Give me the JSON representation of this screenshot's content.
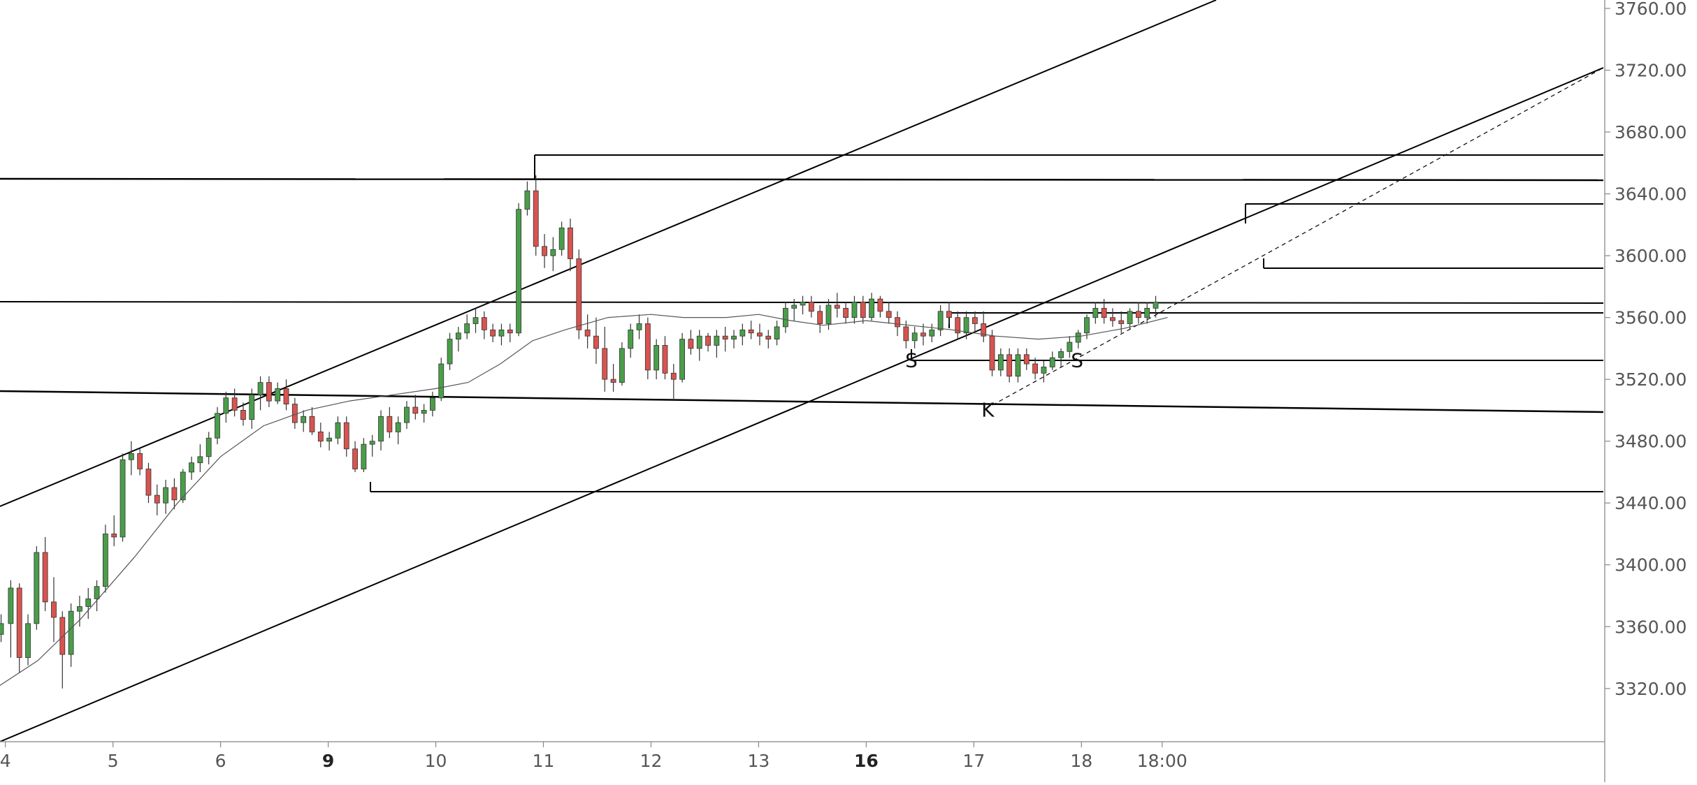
{
  "chart_data": {
    "type": "candlestick",
    "colors": {
      "up": "#4a9e4a",
      "down": "#d9534f",
      "wick": "#333333",
      "line": "#000000",
      "ma": "#555555",
      "axis_text": "#555555",
      "grid": "#cccccc"
    },
    "y_axis": {
      "position": "right",
      "range": [
        3305,
        3760
      ],
      "ticks": [
        3320,
        3360,
        3400,
        3440,
        3480,
        3520,
        3560,
        3600,
        3640,
        3680,
        3720,
        3760
      ],
      "tick_labels": [
        "3320.00",
        "3360.00",
        "3400.00",
        "3440.00",
        "3480.00",
        "3520.00",
        "3560.00",
        "3600.00",
        "3640.00",
        "3680.00",
        "3720.00",
        "3760.00"
      ]
    },
    "x_axis": {
      "range": [
        3.95,
        18.85
      ],
      "ticks": [
        {
          "value": 4,
          "label": "4",
          "bold": false
        },
        {
          "value": 5,
          "label": "5",
          "bold": false
        },
        {
          "value": 6,
          "label": "6",
          "bold": false
        },
        {
          "value": 7,
          "label": "9",
          "bold": true
        },
        {
          "value": 8,
          "label": "10",
          "bold": false
        },
        {
          "value": 9,
          "label": "11",
          "bold": false
        },
        {
          "value": 10,
          "label": "12",
          "bold": false
        },
        {
          "value": 11,
          "label": "13",
          "bold": false
        },
        {
          "value": 12,
          "label": "16",
          "bold": true
        },
        {
          "value": 13,
          "label": "17",
          "bold": false
        },
        {
          "value": 14,
          "label": "18",
          "bold": false
        },
        {
          "value": 14.75,
          "label": "18:00",
          "bold": false
        }
      ]
    },
    "candles": [
      [
        3.96,
        3355,
        3368,
        3350,
        3362
      ],
      [
        4.05,
        3362,
        3390,
        3340,
        3385
      ],
      [
        4.13,
        3385,
        3388,
        3330,
        3340
      ],
      [
        4.21,
        3340,
        3368,
        3335,
        3362
      ],
      [
        4.29,
        3362,
        3412,
        3358,
        3408
      ],
      [
        4.37,
        3408,
        3418,
        3370,
        3376
      ],
      [
        4.45,
        3376,
        3392,
        3350,
        3366
      ],
      [
        4.53,
        3366,
        3370,
        3320,
        3342
      ],
      [
        4.61,
        3342,
        3375,
        3334,
        3370
      ],
      [
        4.69,
        3370,
        3380,
        3360,
        3373
      ],
      [
        4.77,
        3373,
        3385,
        3365,
        3378
      ],
      [
        4.85,
        3378,
        3390,
        3370,
        3386
      ],
      [
        4.93,
        3386,
        3426,
        3382,
        3420
      ],
      [
        5.01,
        3420,
        3432,
        3412,
        3418
      ],
      [
        5.09,
        3418,
        3472,
        3415,
        3468
      ],
      [
        5.17,
        3468,
        3480,
        3458,
        3472
      ],
      [
        5.25,
        3472,
        3475,
        3458,
        3462
      ],
      [
        5.33,
        3462,
        3466,
        3440,
        3445
      ],
      [
        5.41,
        3445,
        3452,
        3432,
        3440
      ],
      [
        5.49,
        3440,
        3455,
        3433,
        3450
      ],
      [
        5.57,
        3450,
        3456,
        3436,
        3442
      ],
      [
        5.65,
        3442,
        3462,
        3440,
        3460
      ],
      [
        5.73,
        3460,
        3470,
        3455,
        3466
      ],
      [
        5.81,
        3466,
        3478,
        3460,
        3470
      ],
      [
        5.89,
        3470,
        3486,
        3465,
        3482
      ],
      [
        5.97,
        3482,
        3502,
        3478,
        3498
      ],
      [
        6.05,
        3498,
        3512,
        3492,
        3508
      ],
      [
        6.13,
        3508,
        3514,
        3496,
        3500
      ],
      [
        6.21,
        3500,
        3505,
        3490,
        3494
      ],
      [
        6.29,
        3494,
        3514,
        3488,
        3510
      ],
      [
        6.37,
        3510,
        3522,
        3500,
        3518
      ],
      [
        6.45,
        3518,
        3522,
        3502,
        3506
      ],
      [
        6.53,
        3506,
        3518,
        3504,
        3514
      ],
      [
        6.61,
        3514,
        3520,
        3500,
        3504
      ],
      [
        6.69,
        3504,
        3508,
        3488,
        3492
      ],
      [
        6.77,
        3492,
        3500,
        3486,
        3496
      ],
      [
        6.85,
        3496,
        3502,
        3484,
        3486
      ],
      [
        6.93,
        3486,
        3492,
        3476,
        3480
      ],
      [
        7.01,
        3480,
        3486,
        3474,
        3482
      ],
      [
        7.09,
        3482,
        3496,
        3478,
        3492
      ],
      [
        7.17,
        3492,
        3496,
        3470,
        3475
      ],
      [
        7.25,
        3475,
        3480,
        3460,
        3462
      ],
      [
        7.33,
        3462,
        3482,
        3460,
        3478
      ],
      [
        7.41,
        3478,
        3484,
        3470,
        3480
      ],
      [
        7.49,
        3480,
        3500,
        3474,
        3496
      ],
      [
        7.57,
        3496,
        3502,
        3482,
        3486
      ],
      [
        7.65,
        3486,
        3496,
        3478,
        3492
      ],
      [
        7.73,
        3492,
        3506,
        3488,
        3502
      ],
      [
        7.81,
        3502,
        3510,
        3494,
        3498
      ],
      [
        7.89,
        3498,
        3504,
        3492,
        3500
      ],
      [
        7.97,
        3500,
        3512,
        3496,
        3508
      ],
      [
        8.05,
        3508,
        3534,
        3506,
        3530
      ],
      [
        8.13,
        3530,
        3550,
        3526,
        3546
      ],
      [
        8.21,
        3546,
        3554,
        3538,
        3550
      ],
      [
        8.29,
        3550,
        3562,
        3546,
        3556
      ],
      [
        8.37,
        3556,
        3566,
        3550,
        3560
      ],
      [
        8.45,
        3560,
        3564,
        3546,
        3552
      ],
      [
        8.53,
        3552,
        3556,
        3544,
        3548
      ],
      [
        8.61,
        3548,
        3556,
        3542,
        3552
      ],
      [
        8.69,
        3552,
        3556,
        3544,
        3550
      ],
      [
        8.77,
        3550,
        3634,
        3548,
        3630
      ],
      [
        8.85,
        3630,
        3648,
        3626,
        3642
      ],
      [
        8.93,
        3642,
        3652,
        3600,
        3606
      ],
      [
        9.01,
        3606,
        3614,
        3592,
        3600
      ],
      [
        9.09,
        3600,
        3612,
        3590,
        3604
      ],
      [
        9.17,
        3604,
        3622,
        3600,
        3618
      ],
      [
        9.25,
        3618,
        3624,
        3590,
        3598
      ],
      [
        9.33,
        3598,
        3604,
        3546,
        3552
      ],
      [
        9.41,
        3552,
        3562,
        3540,
        3548
      ],
      [
        9.49,
        3548,
        3560,
        3530,
        3540
      ],
      [
        9.57,
        3540,
        3554,
        3512,
        3520
      ],
      [
        9.65,
        3520,
        3530,
        3512,
        3518
      ],
      [
        9.73,
        3518,
        3544,
        3516,
        3540
      ],
      [
        9.81,
        3540,
        3556,
        3534,
        3552
      ],
      [
        9.89,
        3552,
        3562,
        3546,
        3556
      ],
      [
        9.97,
        3556,
        3560,
        3520,
        3526
      ],
      [
        10.05,
        3526,
        3546,
        3520,
        3542
      ],
      [
        10.13,
        3542,
        3548,
        3520,
        3524
      ],
      [
        10.21,
        3524,
        3530,
        3506,
        3520
      ],
      [
        10.29,
        3520,
        3550,
        3518,
        3546
      ],
      [
        10.37,
        3546,
        3552,
        3536,
        3540
      ],
      [
        10.45,
        3540,
        3552,
        3532,
        3548
      ],
      [
        10.53,
        3548,
        3550,
        3538,
        3542
      ],
      [
        10.61,
        3542,
        3552,
        3534,
        3548
      ],
      [
        10.69,
        3548,
        3554,
        3538,
        3546
      ],
      [
        10.77,
        3546,
        3552,
        3540,
        3548
      ],
      [
        10.85,
        3548,
        3556,
        3542,
        3552
      ],
      [
        10.93,
        3552,
        3558,
        3546,
        3550
      ],
      [
        11.01,
        3550,
        3556,
        3542,
        3548
      ],
      [
        11.09,
        3548,
        3552,
        3540,
        3546
      ],
      [
        11.17,
        3546,
        3558,
        3542,
        3554
      ],
      [
        11.25,
        3554,
        3570,
        3550,
        3566
      ],
      [
        11.33,
        3566,
        3572,
        3558,
        3568
      ],
      [
        11.41,
        3568,
        3574,
        3562,
        3570
      ],
      [
        11.49,
        3570,
        3574,
        3560,
        3564
      ],
      [
        11.57,
        3564,
        3568,
        3550,
        3556
      ],
      [
        11.65,
        3556,
        3572,
        3552,
        3568
      ],
      [
        11.73,
        3568,
        3576,
        3560,
        3566
      ],
      [
        11.81,
        3566,
        3570,
        3556,
        3560
      ],
      [
        11.89,
        3560,
        3574,
        3556,
        3570
      ],
      [
        11.97,
        3570,
        3574,
        3556,
        3560
      ],
      [
        12.05,
        3560,
        3576,
        3558,
        3572
      ],
      [
        12.13,
        3572,
        3574,
        3560,
        3564
      ],
      [
        12.21,
        3564,
        3570,
        3556,
        3560
      ],
      [
        12.29,
        3560,
        3564,
        3548,
        3554
      ],
      [
        12.37,
        3554,
        3558,
        3540,
        3545
      ],
      [
        12.45,
        3545,
        3554,
        3540,
        3550
      ],
      [
        12.53,
        3550,
        3556,
        3542,
        3548
      ],
      [
        12.61,
        3548,
        3556,
        3544,
        3552
      ],
      [
        12.69,
        3552,
        3568,
        3548,
        3564
      ],
      [
        12.77,
        3564,
        3570,
        3556,
        3560
      ],
      [
        12.85,
        3560,
        3564,
        3546,
        3550
      ],
      [
        12.93,
        3550,
        3564,
        3546,
        3560
      ],
      [
        13.01,
        3560,
        3564,
        3550,
        3556
      ],
      [
        13.09,
        3556,
        3564,
        3544,
        3548
      ],
      [
        13.17,
        3548,
        3552,
        3522,
        3526
      ],
      [
        13.25,
        3526,
        3540,
        3522,
        3536
      ],
      [
        13.33,
        3536,
        3540,
        3518,
        3522
      ],
      [
        13.41,
        3522,
        3540,
        3518,
        3536
      ],
      [
        13.49,
        3536,
        3540,
        3526,
        3530
      ],
      [
        13.57,
        3530,
        3534,
        3520,
        3524
      ],
      [
        13.65,
        3524,
        3532,
        3518,
        3528
      ],
      [
        13.73,
        3528,
        3538,
        3526,
        3534
      ],
      [
        13.81,
        3534,
        3540,
        3528,
        3538
      ],
      [
        13.89,
        3538,
        3548,
        3534,
        3544
      ],
      [
        13.97,
        3544,
        3552,
        3540,
        3550
      ],
      [
        14.05,
        3550,
        3562,
        3546,
        3560
      ],
      [
        14.13,
        3560,
        3570,
        3556,
        3566
      ],
      [
        14.21,
        3566,
        3572,
        3556,
        3560
      ],
      [
        14.29,
        3560,
        3566,
        3554,
        3558
      ],
      [
        14.37,
        3558,
        3564,
        3550,
        3556
      ],
      [
        14.45,
        3556,
        3566,
        3552,
        3564
      ],
      [
        14.53,
        3564,
        3570,
        3556,
        3560
      ],
      [
        14.61,
        3560,
        3570,
        3556,
        3566
      ],
      [
        14.69,
        3566,
        3574,
        3560,
        3570
      ]
    ],
    "ma_line": [
      [
        3.95,
        3322
      ],
      [
        4.3,
        3338
      ],
      [
        4.7,
        3365
      ],
      [
        5.2,
        3405
      ],
      [
        5.6,
        3440
      ],
      [
        6.0,
        3470
      ],
      [
        6.4,
        3490
      ],
      [
        6.8,
        3500
      ],
      [
        7.2,
        3506
      ],
      [
        7.6,
        3510
      ],
      [
        8.0,
        3514
      ],
      [
        8.3,
        3518
      ],
      [
        8.6,
        3530
      ],
      [
        8.9,
        3545
      ],
      [
        9.2,
        3552
      ],
      [
        9.6,
        3560
      ],
      [
        10.0,
        3562
      ],
      [
        10.3,
        3560
      ],
      [
        10.7,
        3560
      ],
      [
        11.0,
        3562
      ],
      [
        11.3,
        3558
      ],
      [
        11.6,
        3555
      ],
      [
        12.0,
        3558
      ],
      [
        12.4,
        3555
      ],
      [
        12.8,
        3552
      ],
      [
        13.2,
        3548
      ],
      [
        13.6,
        3546
      ],
      [
        14.0,
        3548
      ],
      [
        14.4,
        3553
      ],
      [
        14.8,
        3560
      ]
    ],
    "annotations": [
      {
        "text": "S",
        "x": 12.42,
        "y": 3528
      },
      {
        "text": "K",
        "x": 13.13,
        "y": 3496
      },
      {
        "text": "S",
        "x": 13.96,
        "y": 3528
      }
    ]
  }
}
